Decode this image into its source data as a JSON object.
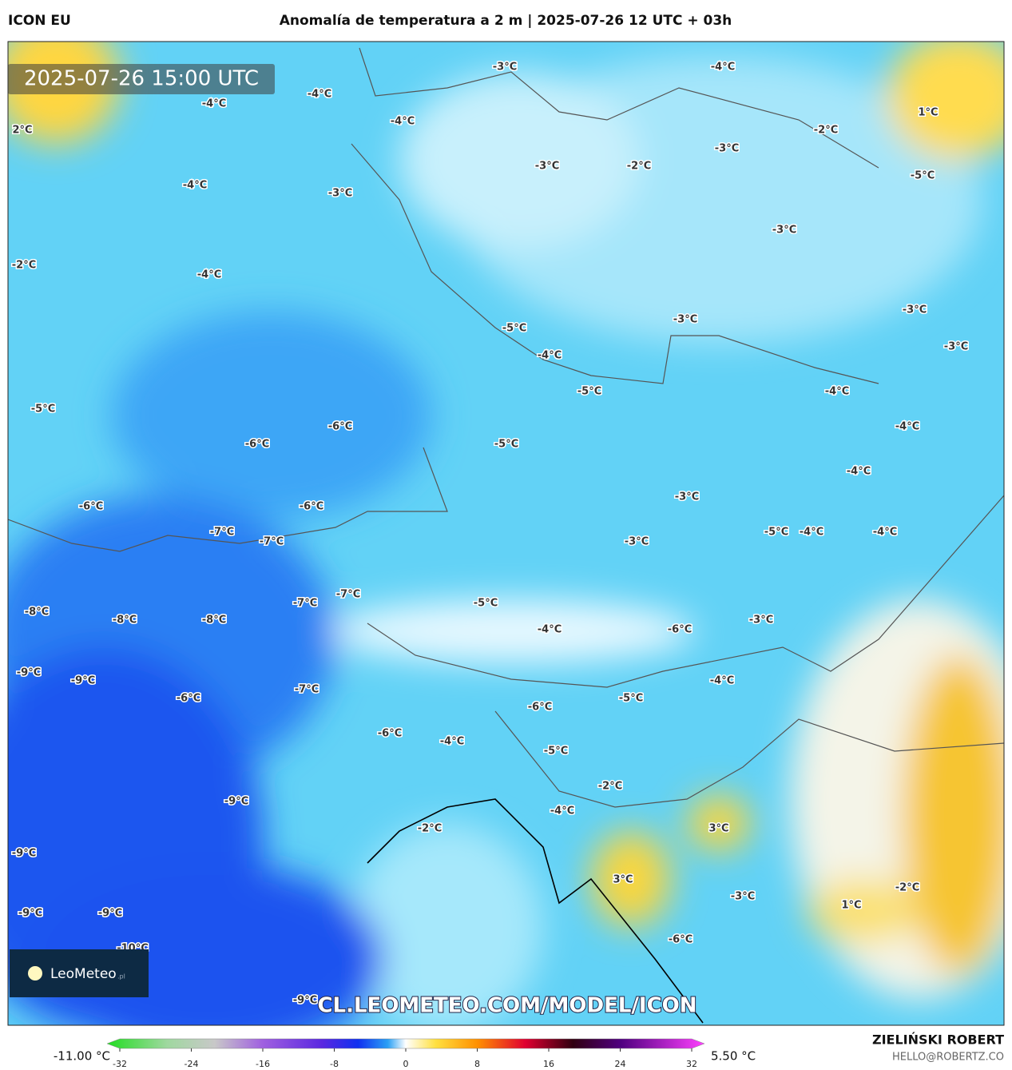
{
  "header": {
    "model": "ICON EU",
    "title": "Anomalía de temperatura a 2 m | 2025-07-26 12 UTC + 03h"
  },
  "map": {
    "timestamp": "2025-07-26 15:00 UTC",
    "watermark": "CL.LEOMETEO.COM/MODEL/ICON",
    "logo": "LeoMeteo",
    "logo_suffix": ".pl",
    "labels": [
      "-3°C",
      "-4°C",
      "-4°C",
      "-4°C",
      "2°C",
      "-4°C",
      "1°C",
      "-2°C",
      "-3°C",
      "-3°C",
      "-2°C",
      "-5°C",
      "-4°C",
      "-3°C",
      "-3°C",
      "-2°C",
      "-4°C",
      "-3°C",
      "-3°C",
      "-5°C",
      "-3°C",
      "-4°C",
      "-5°C",
      "-4°C",
      "-5°C",
      "-6°C",
      "-4°C",
      "-6°C",
      "-5°C",
      "-4°C",
      "-3°C",
      "-6°C",
      "-6°C",
      "-5°C",
      "-4°C",
      "-4°C",
      "-7°C",
      "-7°C",
      "-3°C",
      "-7°C",
      "-7°C",
      "-5°C",
      "-8°C",
      "-8°C",
      "-8°C",
      "-3°C",
      "-4°C",
      "-6°C",
      "-9°C",
      "-9°C",
      "-4°C",
      "-7°C",
      "-6°C",
      "-5°C",
      "-6°C",
      "-6°C",
      "-4°C",
      "-5°C",
      "-2°C",
      "-9°C",
      "3°C",
      "-4°C",
      "-2°C",
      "-9°C",
      "3°C",
      "-2°C",
      "-3°C",
      "1°C",
      "-9°C",
      "-9°C",
      "-6°C",
      "-10°C",
      "-9°C"
    ]
  },
  "colorbar": {
    "min_label": "-11.00 °C",
    "max_label": "5.50 °C",
    "ticks": [
      -32,
      -24,
      -16,
      -8,
      0,
      8,
      16,
      24,
      32
    ]
  },
  "footer": {
    "author": "ZIELIŃSKI ROBERT",
    "email": "HELLO@ROBERTZ.CO"
  }
}
